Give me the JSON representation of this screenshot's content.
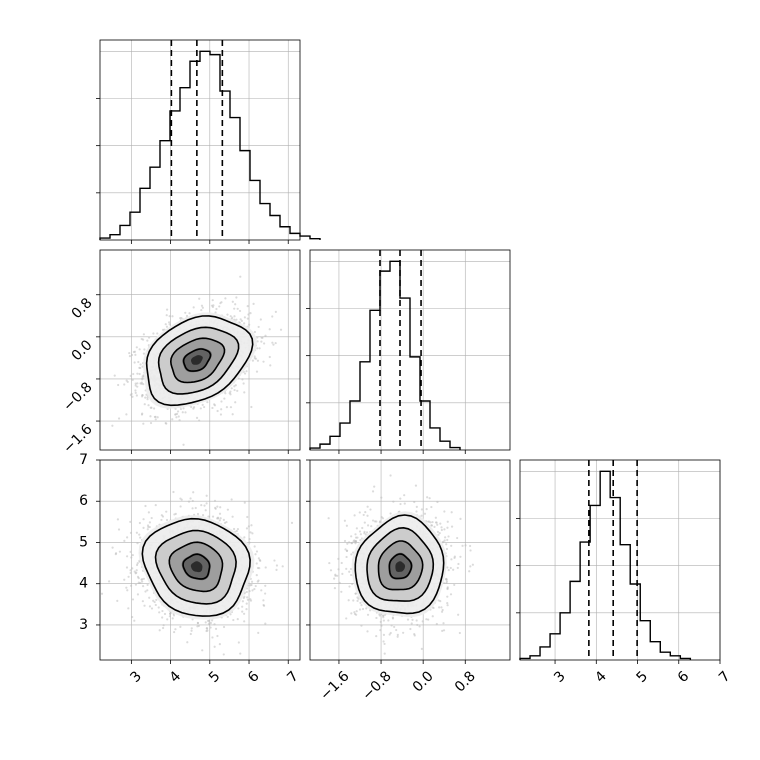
{
  "chart_data": [
    {
      "type": "histogram",
      "parameter_index": 0,
      "x_range": [
        2.2,
        7.3
      ],
      "xticks": [
        3,
        4,
        5,
        6,
        7
      ],
      "bin_edges_start": 2.2,
      "bin_width": 0.255,
      "counts": [
        0.3,
        0.8,
        2.2,
        4.2,
        7.8,
        11,
        15,
        19.5,
        23,
        27,
        28.5,
        28,
        22.5,
        18.5,
        13.5,
        9,
        5.5,
        3.7,
        2,
        1,
        0.6,
        0.2
      ],
      "quantiles": [
        4.02,
        4.67,
        5.32
      ],
      "grid": true
    },
    {
      "type": "histogram",
      "parameter_index": 1,
      "x_range": [
        -2.15,
        1.65
      ],
      "xticks": [
        -1.6,
        -0.8,
        0.0,
        0.8
      ],
      "xtick_labels": [
        "−1.6",
        "−0.8",
        "0.0",
        "0.8"
      ],
      "bin_edges_start": -2.15,
      "bin_width": 0.19,
      "counts": [
        0.4,
        1.2,
        2.8,
        5.5,
        10,
        18,
        28.5,
        36.5,
        38.5,
        31,
        19,
        10,
        4.5,
        1.8,
        0.5
      ],
      "quantiles": [
        -0.82,
        -0.44,
        -0.04
      ],
      "grid": true
    },
    {
      "type": "histogram",
      "parameter_index": 2,
      "x_range": [
        2.15,
        7.0
      ],
      "xticks": [
        3,
        4,
        5,
        6,
        7
      ],
      "bin_edges_start": 2.15,
      "bin_width": 0.243,
      "counts": [
        0.3,
        0.8,
        2.5,
        5,
        9,
        15,
        22.5,
        29.5,
        36,
        31,
        22,
        14.5,
        7.5,
        3.5,
        1.5,
        0.8,
        0.3
      ],
      "quantiles": [
        3.82,
        4.41,
        4.99
      ],
      "grid": true
    },
    {
      "type": "scatter_contour",
      "x_param": 0,
      "y_param": 1,
      "x_range": [
        2.2,
        7.3
      ],
      "y_range": [
        -2.15,
        1.65
      ],
      "xticks": [
        3,
        4,
        5,
        6,
        7
      ],
      "yticks": [
        -1.6,
        -0.8,
        0.0,
        0.8
      ],
      "ytick_labels": [
        "−1.6",
        "−0.8",
        "0.0",
        "0.8"
      ],
      "center": [
        4.67,
        -0.44
      ],
      "sd": [
        0.67,
        0.42
      ],
      "correlation": 0.3,
      "contour_levels_sigma": [
        0.5,
        1.0,
        1.5,
        2.0
      ],
      "grid": true
    },
    {
      "type": "scatter_contour",
      "x_param": 0,
      "y_param": 2,
      "x_range": [
        2.2,
        7.3
      ],
      "y_range": [
        2.15,
        7.0
      ],
      "xticks": [
        3,
        4,
        5,
        6,
        7
      ],
      "yticks": [
        3,
        4,
        5,
        6,
        7
      ],
      "center": [
        4.67,
        4.41
      ],
      "sd": [
        0.67,
        0.59
      ],
      "correlation": -0.1,
      "contour_levels_sigma": [
        0.5,
        1.0,
        1.5,
        2.0
      ],
      "grid": true
    },
    {
      "type": "scatter_contour",
      "x_param": 1,
      "y_param": 2,
      "x_range": [
        -2.15,
        1.65
      ],
      "y_range": [
        2.15,
        7.0
      ],
      "xticks": [
        -1.6,
        -0.8,
        0.0,
        0.8
      ],
      "xtick_labels": [
        "−1.6",
        "−0.8",
        "0.0",
        "0.8"
      ],
      "yticks": [
        3,
        4,
        5,
        6,
        7
      ],
      "center": [
        -0.44,
        4.41
      ],
      "sd": [
        0.42,
        0.59
      ],
      "correlation": 0.05,
      "contour_levels_sigma": [
        0.5,
        1.0,
        1.5,
        2.0
      ],
      "grid": true
    }
  ],
  "colors": {
    "hist": "#000000",
    "contour": "#000000",
    "points": "#bdbdbd",
    "grid": "#b0b0b0"
  }
}
